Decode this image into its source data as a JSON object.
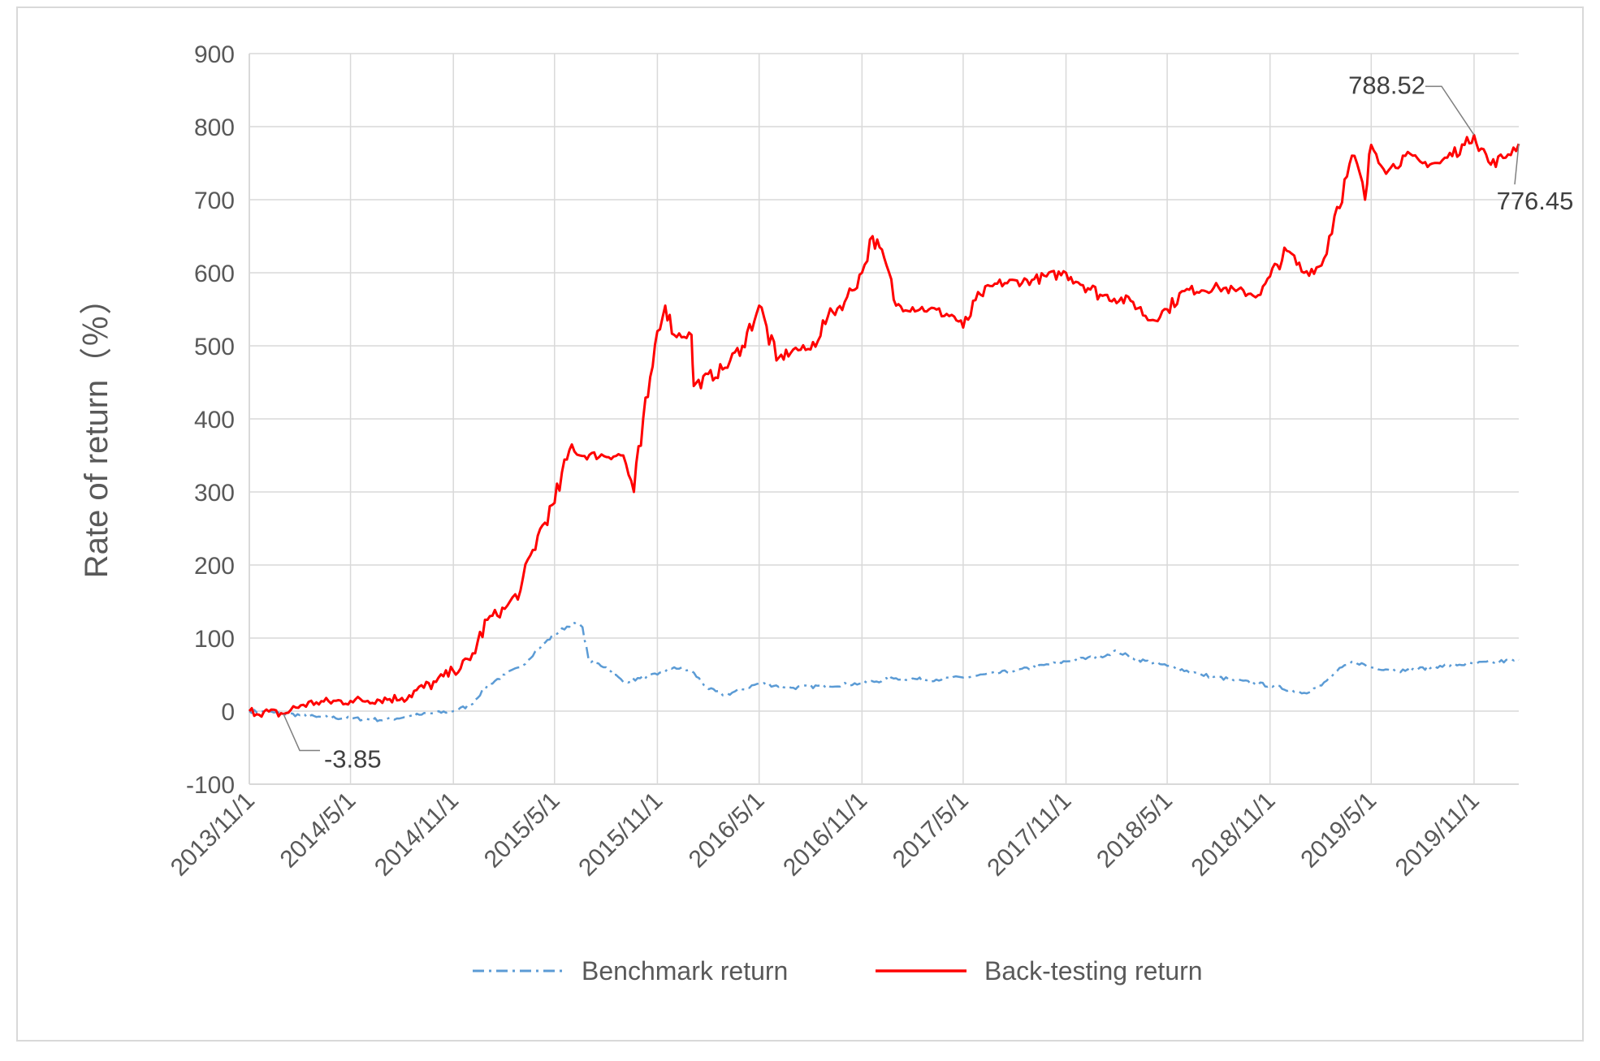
{
  "chart_data": {
    "type": "line",
    "ylabel": "Rate of return（％）",
    "ylim": [
      -100,
      900
    ],
    "yticks": [
      "900",
      "800",
      "700",
      "600",
      "500",
      "400",
      "300",
      "200",
      "100",
      "0",
      "-100"
    ],
    "xticks": [
      "2013/11/1",
      "2014/5/1",
      "2014/11/1",
      "2015/5/1",
      "2015/11/1",
      "2016/5/1",
      "2016/11/1",
      "2017/5/1",
      "2017/11/1",
      "2018/5/1",
      "2018/11/1",
      "2019/5/1",
      "2019/11/1"
    ],
    "x_range": [
      "2013/11/1",
      "2020/1/20"
    ],
    "grid": true,
    "legend_position": "bottom",
    "series": [
      {
        "name": "Benchmark return",
        "color": "#5b9bd5",
        "style": "dash-dot",
        "points": [
          [
            "2013/11/1",
            0
          ],
          [
            "2014/1/1",
            -3
          ],
          [
            "2014/3/1",
            -8
          ],
          [
            "2014/5/1",
            -10
          ],
          [
            "2014/7/1",
            -12
          ],
          [
            "2014/9/1",
            -5
          ],
          [
            "2014/11/1",
            0
          ],
          [
            "2014/12/1",
            8
          ],
          [
            "2015/1/1",
            35
          ],
          [
            "2015/2/1",
            50
          ],
          [
            "2015/3/1",
            60
          ],
          [
            "2015/4/1",
            85
          ],
          [
            "2015/5/1",
            105
          ],
          [
            "2015/6/1",
            120
          ],
          [
            "2015/6/20",
            115
          ],
          [
            "2015/7/1",
            70
          ],
          [
            "2015/8/1",
            60
          ],
          [
            "2015/9/1",
            40
          ],
          [
            "2015/10/1",
            45
          ],
          [
            "2015/11/1",
            50
          ],
          [
            "2015/12/1",
            60
          ],
          [
            "2016/1/1",
            55
          ],
          [
            "2016/2/1",
            30
          ],
          [
            "2016/3/1",
            22
          ],
          [
            "2016/5/1",
            38
          ],
          [
            "2016/7/1",
            32
          ],
          [
            "2016/9/1",
            35
          ],
          [
            "2016/11/1",
            38
          ],
          [
            "2017/1/1",
            45
          ],
          [
            "2017/3/1",
            43
          ],
          [
            "2017/5/1",
            46
          ],
          [
            "2017/8/1",
            55
          ],
          [
            "2017/11/1",
            68
          ],
          [
            "2018/1/1",
            75
          ],
          [
            "2018/2/1",
            82
          ],
          [
            "2018/3/1",
            72
          ],
          [
            "2018/5/1",
            62
          ],
          [
            "2018/7/1",
            50
          ],
          [
            "2018/9/1",
            42
          ],
          [
            "2018/11/1",
            35
          ],
          [
            "2019/1/1",
            25
          ],
          [
            "2019/2/1",
            35
          ],
          [
            "2019/3/1",
            55
          ],
          [
            "2019/4/1",
            68
          ],
          [
            "2019/5/1",
            60
          ],
          [
            "2019/7/1",
            55
          ],
          [
            "2019/9/1",
            62
          ],
          [
            "2019/11/1",
            65
          ],
          [
            "2020/1/20",
            70
          ]
        ]
      },
      {
        "name": "Back-testing return",
        "color": "#ff0000",
        "style": "solid",
        "points": [
          [
            "2013/11/1",
            0
          ],
          [
            "2014/1/1",
            -3.85
          ],
          [
            "2014/2/1",
            8
          ],
          [
            "2014/3/1",
            12
          ],
          [
            "2014/5/1",
            14
          ],
          [
            "2014/8/1",
            18
          ],
          [
            "2014/10/1",
            40
          ],
          [
            "2014/11/1",
            55
          ],
          [
            "2014/12/1",
            70
          ],
          [
            "2015/1/1",
            125
          ],
          [
            "2015/2/1",
            140
          ],
          [
            "2015/3/1",
            165
          ],
          [
            "2015/4/1",
            240
          ],
          [
            "2015/5/1",
            285
          ],
          [
            "2015/6/1",
            365
          ],
          [
            "2015/6/15",
            350
          ],
          [
            "2015/9/1",
            350
          ],
          [
            "2015/9/20",
            300
          ],
          [
            "2015/10/15",
            430
          ],
          [
            "2015/11/1",
            520
          ],
          [
            "2015/11/15",
            555
          ],
          [
            "2015/12/1",
            515
          ],
          [
            "2016/1/1",
            515
          ],
          [
            "2016/1/5",
            445
          ],
          [
            "2016/3/1",
            470
          ],
          [
            "2016/4/1",
            500
          ],
          [
            "2016/5/1",
            555
          ],
          [
            "2016/6/1",
            480
          ],
          [
            "2016/7/1",
            495
          ],
          [
            "2016/8/1",
            495
          ],
          [
            "2016/9/1",
            540
          ],
          [
            "2016/10/1",
            560
          ],
          [
            "2016/11/1",
            600
          ],
          [
            "2016/11/20",
            650
          ],
          [
            "2016/12/15",
            610
          ],
          [
            "2017/1/1",
            555
          ],
          [
            "2017/3/1",
            550
          ],
          [
            "2017/4/15",
            540
          ],
          [
            "2017/5/1",
            525
          ],
          [
            "2017/6/1",
            570
          ],
          [
            "2017/7/1",
            585
          ],
          [
            "2017/9/1",
            590
          ],
          [
            "2017/11/1",
            600
          ],
          [
            "2018/1/1",
            570
          ],
          [
            "2018/3/1",
            560
          ],
          [
            "2018/4/1",
            535
          ],
          [
            "2018/5/1",
            550
          ],
          [
            "2018/6/1",
            575
          ],
          [
            "2018/8/1",
            580
          ],
          [
            "2018/9/1",
            575
          ],
          [
            "2018/10/15",
            570
          ],
          [
            "2018/11/1",
            595
          ],
          [
            "2018/12/1",
            630
          ],
          [
            "2019/1/1",
            600
          ],
          [
            "2019/2/1",
            610
          ],
          [
            "2019/3/1",
            690
          ],
          [
            "2019/4/1",
            760
          ],
          [
            "2019/4/20",
            700
          ],
          [
            "2019/5/1",
            775
          ],
          [
            "2019/6/1",
            740
          ],
          [
            "2019/7/1",
            760
          ],
          [
            "2019/8/1",
            750
          ],
          [
            "2019/9/1",
            750
          ],
          [
            "2019/10/15",
            775
          ],
          [
            "2019/11/1",
            788.52
          ],
          [
            "2019/12/1",
            748
          ],
          [
            "2020/1/1",
            762
          ],
          [
            "2020/1/20",
            776.45
          ]
        ]
      }
    ],
    "annotations": [
      {
        "text": "788.52",
        "date": "2019/11/1",
        "value": 788.52
      },
      {
        "text": "776.45",
        "date": "2020/1/20",
        "value": 776.45
      },
      {
        "text": "-3.85",
        "date": "2014/1/1",
        "value": -3.85
      }
    ]
  }
}
